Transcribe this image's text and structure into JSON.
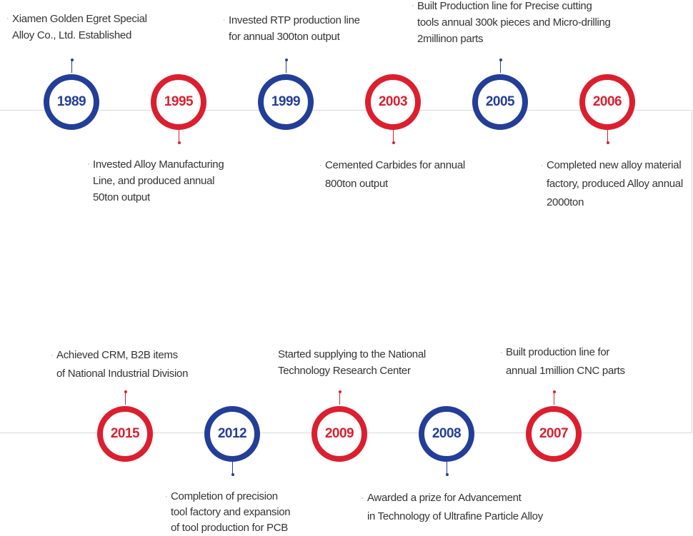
{
  "milestones": [
    {
      "year": "1989",
      "lines": [
        "Xiamen Golden Egret Special",
        "Alloy Co., Ltd. Established"
      ]
    },
    {
      "year": "1995",
      "lines": [
        "Invested Alloy Manufacturing",
        "Line, and produced annual",
        "50ton output"
      ]
    },
    {
      "year": "1999",
      "lines": [
        "Invested RTP production line",
        "for annual 300ton output"
      ]
    },
    {
      "year": "2003",
      "lines": [
        "Cemented Carbides for annual",
        "800ton output"
      ]
    },
    {
      "year": "2005",
      "lines": [
        "Built Production line for Precise cutting",
        "tools annual 300k pieces and Micro-drilling",
        " 2millinon parts"
      ]
    },
    {
      "year": "2006",
      "lines": [
        "Completed new alloy material",
        "factory, produced Alloy annual",
        "2000ton"
      ]
    },
    {
      "year": "2007",
      "lines": [
        "Built production line for",
        "annual 1million CNC parts"
      ]
    },
    {
      "year": "2008",
      "lines": [
        "Awarded a prize for Advancement",
        "in Technology of Ultrafine Particle Alloy"
      ]
    },
    {
      "year": "2009",
      "lines": [
        "Started supplying to the National",
        "Technology Research Center"
      ]
    },
    {
      "year": "2012",
      "lines": [
        "Completion of precision",
        "tool factory and expansion",
        "of tool production for PCB"
      ]
    },
    {
      "year": "2015",
      "lines": [
        "Achieved CRM, B2B items",
        "of National Industrial Division"
      ]
    }
  ],
  "bullet_char": "·",
  "colors": {
    "blue": "#233e99",
    "red": "#db1f2f",
    "track": "#d9d9d9"
  }
}
